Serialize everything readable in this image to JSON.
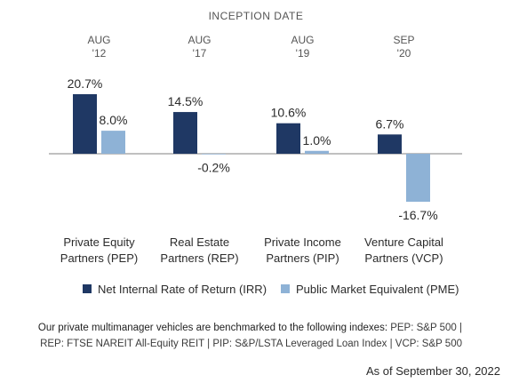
{
  "chart_data": {
    "type": "bar",
    "header": "INCEPTION DATE",
    "categories": [
      {
        "date_month": "AUG",
        "date_year": "'12",
        "label_line1": "Private Equity",
        "label_line2": "Partners (PEP)"
      },
      {
        "date_month": "AUG",
        "date_year": "'17",
        "label_line1": "Real Estate",
        "label_line2": "Partners (REP)"
      },
      {
        "date_month": "AUG",
        "date_year": "'19",
        "label_line1": "Private Income",
        "label_line2": "Partners (PIP)"
      },
      {
        "date_month": "SEP",
        "date_year": "'20",
        "label_line1": "Venture Capital",
        "label_line2": "Partners (VCP)"
      }
    ],
    "series": [
      {
        "name": "Net Internal Rate of Return (IRR)",
        "color": "#1f3864",
        "values": [
          20.7,
          14.5,
          10.6,
          6.7
        ],
        "labels": [
          "20.7%",
          "14.5%",
          "10.6%",
          "6.7%"
        ]
      },
      {
        "name": "Public Market Equivalent (PME)",
        "color": "#8eb2d6",
        "values": [
          8.0,
          -0.2,
          1.0,
          -16.7
        ],
        "labels": [
          "8.0%",
          "-0.2%",
          "1.0%",
          "-16.7%"
        ]
      }
    ],
    "ylim": [
      -16.7,
      20.7
    ],
    "legend_position": "bottom",
    "grid": false
  },
  "footnote": {
    "line1_lead": "Our private multimanager vehicles are benchmarked to the following indexes:",
    "line1_rest": "PEP: S&P 500 |",
    "line2": "REP: FTSE NAREIT All-Equity REIT | PIP: S&P/LSTA Leveraged Loan Index | VCP: S&P 500"
  },
  "as_of": "As of September 30, 2022"
}
